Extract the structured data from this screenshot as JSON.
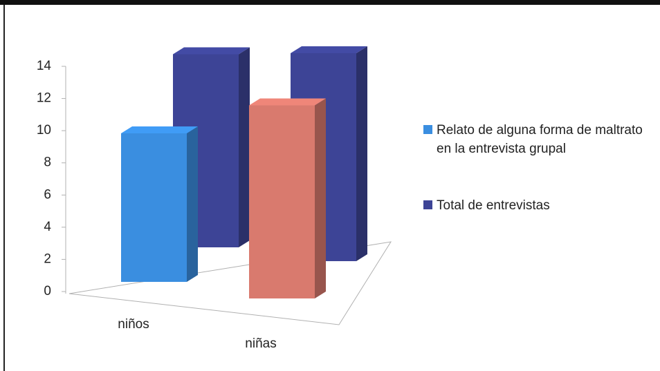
{
  "chart_data": {
    "type": "bar3d",
    "categories": [
      "niños",
      "niñas"
    ],
    "series": [
      {
        "name": "Relato de alguna forma de maltrato en la entrevista grupal",
        "color": "#3a8ee0",
        "colors": [
          "#3a8ee0",
          "#d97a6e"
        ],
        "values": [
          10,
          13
        ]
      },
      {
        "name": "Total de entrevistas",
        "color": "#3d4496",
        "values": [
          13,
          14
        ]
      }
    ],
    "ylim": [
      0,
      14
    ],
    "yticks": [
      0,
      2,
      4,
      6,
      8,
      10,
      12,
      14
    ],
    "legend": "right"
  }
}
